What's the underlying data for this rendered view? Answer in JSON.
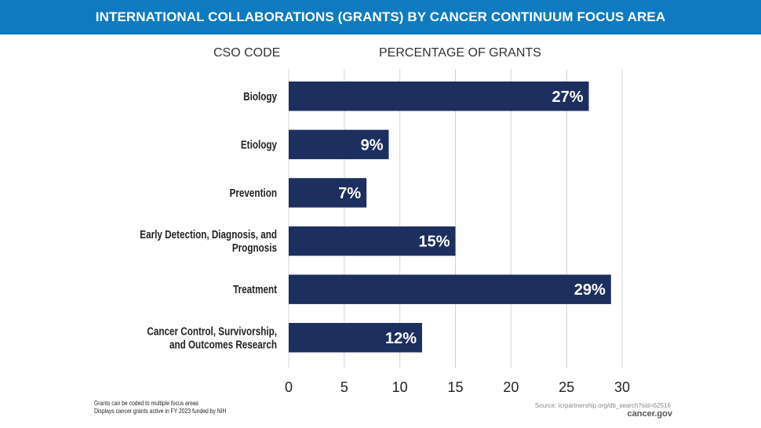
{
  "header": {
    "title": "INTERNATIONAL COLLABORATIONS (GRANTS) BY CANCER CONTINUUM FOCUS AREA"
  },
  "column_headers": {
    "category": "CSO CODE",
    "value": "PERCENTAGE OF GRANTS"
  },
  "chart_data": {
    "type": "bar",
    "orientation": "horizontal",
    "title": "INTERNATIONAL COLLABORATIONS (GRANTS) BY CANCER CONTINUUM FOCUS AREA",
    "xlabel": "PERCENTAGE OF GRANTS",
    "ylabel": "CSO CODE",
    "categories": [
      [
        "Biology"
      ],
      [
        "Etiology"
      ],
      [
        "Prevention"
      ],
      [
        "Early Detection, Diagnosis, and",
        "Prognosis"
      ],
      [
        "Treatment"
      ],
      [
        "Cancer Control, Survivorship,",
        "and Outcomes Research"
      ]
    ],
    "values": [
      27,
      9,
      7,
      15,
      29,
      12
    ],
    "data_labels": [
      "27%",
      "9%",
      "7%",
      "15%",
      "29%",
      "12%"
    ],
    "xlim": [
      0,
      30
    ],
    "xticks": [
      0,
      5,
      10,
      15,
      20,
      25,
      30
    ],
    "grid": true,
    "bar_color": "#1c2f5e",
    "banner_color": "#0e7bc0"
  },
  "footer": {
    "notes": [
      "Grants can be coded to multiple focus areas",
      "Displays cancer grants active in FY 2023 funded by NIH"
    ],
    "source": "Source: icrpartnership.org/db_search?sid=62516",
    "brand": "cancer.gov"
  }
}
